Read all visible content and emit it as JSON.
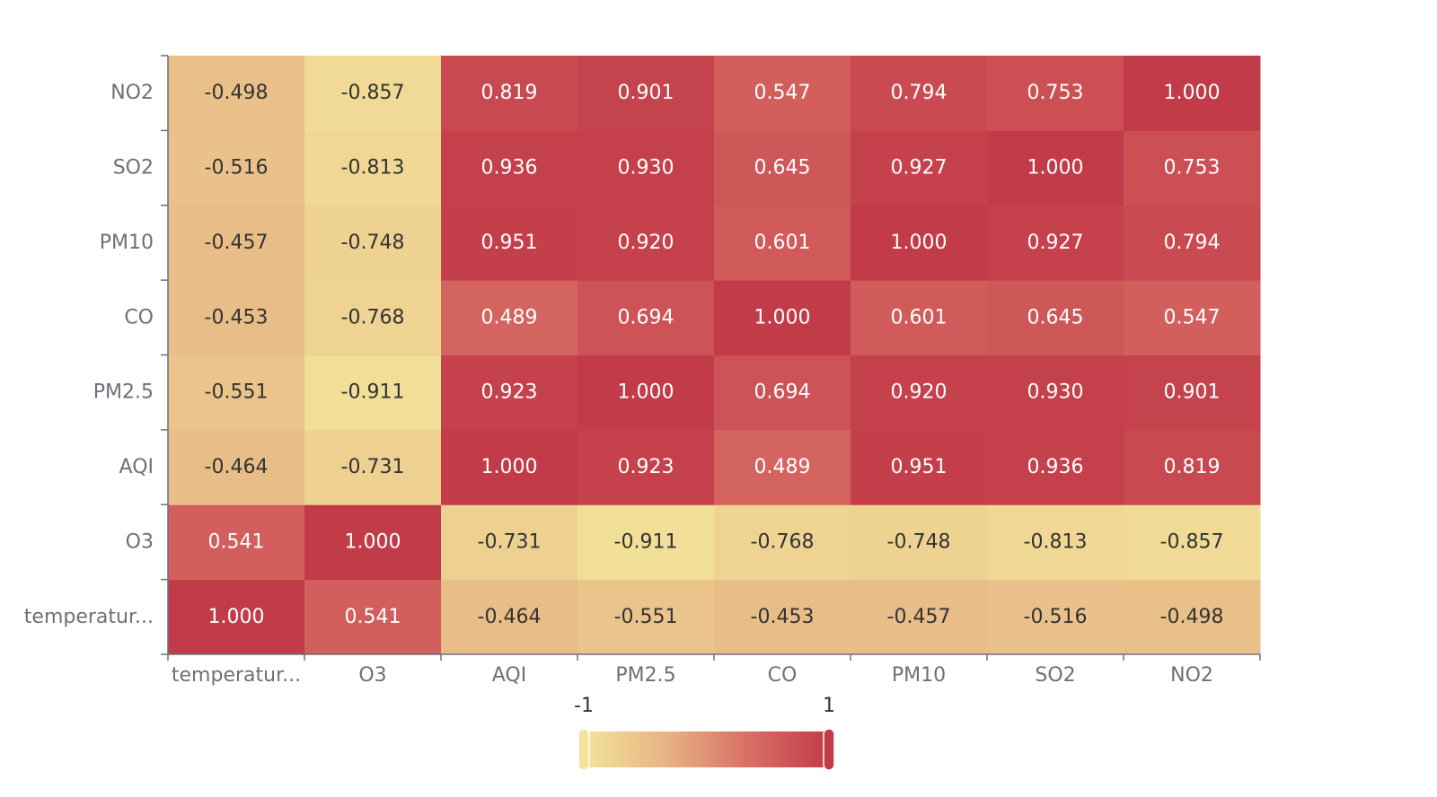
{
  "chart_data": {
    "type": "heatmap",
    "x_categories": [
      "temperatur...",
      "O3",
      "AQI",
      "PM2.5",
      "CO",
      "PM10",
      "SO2",
      "NO2"
    ],
    "y_categories": [
      "temperatur...",
      "O3",
      "AQI",
      "PM2.5",
      "CO",
      "PM10",
      "SO2",
      "NO2"
    ],
    "values": [
      [
        1.0,
        0.541,
        -0.464,
        -0.551,
        -0.453,
        -0.457,
        -0.516,
        -0.498
      ],
      [
        0.541,
        1.0,
        -0.731,
        -0.911,
        -0.768,
        -0.748,
        -0.813,
        -0.857
      ],
      [
        -0.464,
        -0.731,
        1.0,
        0.923,
        0.489,
        0.951,
        0.936,
        0.819
      ],
      [
        -0.551,
        -0.911,
        0.923,
        1.0,
        0.694,
        0.92,
        0.93,
        0.901
      ],
      [
        -0.453,
        -0.768,
        0.489,
        0.694,
        1.0,
        0.601,
        0.645,
        0.547
      ],
      [
        -0.457,
        -0.748,
        0.951,
        0.92,
        0.601,
        1.0,
        0.927,
        0.794
      ],
      [
        -0.516,
        -0.813,
        0.936,
        0.93,
        0.645,
        0.927,
        1.0,
        0.753
      ],
      [
        -0.498,
        -0.857,
        0.819,
        0.901,
        0.547,
        0.794,
        0.753,
        1.0
      ]
    ],
    "value_range": [
      -1,
      1
    ],
    "label_format_decimals": 3,
    "legend": {
      "type": "continuous",
      "placement": "bottom-center",
      "min_label": "-1",
      "max_label": "1",
      "colors": [
        "#f3e49a",
        "#e7b484",
        "#d97066",
        "#c23b48"
      ]
    },
    "title": "",
    "xlabel": "",
    "ylabel": ""
  }
}
